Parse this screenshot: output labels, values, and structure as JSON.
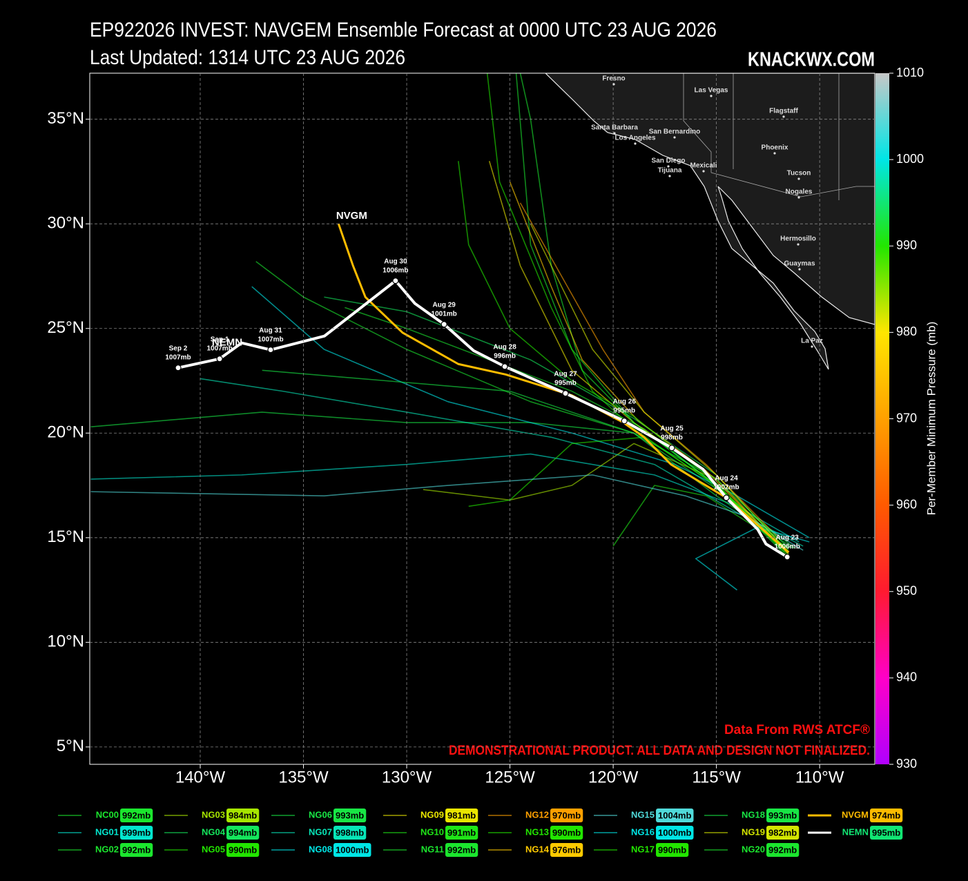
{
  "chart_data": {
    "type": "track",
    "title": "EP922026 INVEST: NAVGEM Ensemble Forecast at 0000 UTC 23 AUG 2026",
    "subtitle": "Last Updated: 1314 UTC 23 AUG 2026",
    "site": "KNACKWX.COM",
    "source": "Data From RWS ATCF®",
    "disclaimer": "DEMONSTRATIONAL PRODUCT. ALL DATA AND DESIGN NOT FINALIZED.",
    "xlim": [
      -145.35,
      -107.33
    ],
    "ylim": [
      4.17,
      37.2
    ],
    "xticks": [
      {
        "value": -140,
        "label": "140°W"
      },
      {
        "value": -135,
        "label": "135°W"
      },
      {
        "value": -130,
        "label": "130°W"
      },
      {
        "value": -125,
        "label": "125°W"
      },
      {
        "value": -120,
        "label": "120°W"
      },
      {
        "value": -115,
        "label": "115°W"
      },
      {
        "value": -110,
        "label": "110°W"
      }
    ],
    "yticks": [
      {
        "value": 5,
        "label": "5°N"
      },
      {
        "value": 10,
        "label": "10°N"
      },
      {
        "value": 15,
        "label": "15°N"
      },
      {
        "value": 20,
        "label": "20°N"
      },
      {
        "value": 25,
        "label": "25°N"
      },
      {
        "value": 30,
        "label": "30°N"
      },
      {
        "value": 35,
        "label": "35°N"
      }
    ],
    "grid": true,
    "colorbar": {
      "label": "Per-Member Minimum Pressure (mb)",
      "lim": [
        930,
        1010
      ],
      "ticks": [
        930,
        940,
        950,
        960,
        970,
        980,
        990,
        1000,
        1010
      ],
      "colormap": [
        "#b000ff",
        "#ff00c8",
        "#ff1a30",
        "#ff5a00",
        "#ffa000",
        "#ffe600",
        "#22e600",
        "#00e6e6",
        "#c8c8c8"
      ]
    },
    "places": [
      "Fresno",
      "Las Vegas",
      "Flagstaff",
      "Santa Barbara",
      "San Bernardino",
      "Los Angeles",
      "Phoenix",
      "San Diego",
      "Tijuana",
      "Mexicali",
      "Tucson",
      "Nogales",
      "Hermosillo",
      "Guaymas",
      "La Paz"
    ],
    "series": [
      {
        "name": "NC00",
        "min_pressure": 992,
        "min_pressure_label": "992mb",
        "x": [
          -111.5,
          -115,
          -118.5,
          -122,
          -126,
          -130,
          -133
        ],
        "values": [
          14.2,
          17.5,
          20.2,
          22,
          23.5,
          25,
          26
        ]
      },
      {
        "name": "NG01",
        "min_pressure": 999,
        "min_pressure_label": "999mb",
        "x": [
          -111,
          -114,
          -118,
          -124,
          -130,
          -138,
          -145.3
        ],
        "values": [
          14.8,
          16.5,
          18,
          19,
          18.5,
          18,
          17.8
        ]
      },
      {
        "name": "NG02",
        "min_pressure": 992,
        "min_pressure_label": "992mb",
        "x": [
          -111.5,
          -115,
          -119,
          -122,
          -124,
          -124.7
        ],
        "values": [
          14,
          17.5,
          20.5,
          24,
          29,
          37.2
        ]
      },
      {
        "name": "NG03",
        "min_pressure": 984,
        "min_pressure_label": "984mb",
        "x": [
          -111.8,
          -115.5,
          -119,
          -122,
          -125,
          -129.2
        ],
        "values": [
          14.5,
          18,
          19.5,
          17.5,
          16.8,
          17.3
        ]
      },
      {
        "name": "NG04",
        "min_pressure": 994,
        "min_pressure_label": "994mb",
        "x": [
          -111.5,
          -115,
          -119,
          -124,
          -130,
          -134
        ],
        "values": [
          14.3,
          18,
          20.7,
          23.5,
          25.8,
          26.5
        ]
      },
      {
        "name": "NG05",
        "min_pressure": 990,
        "min_pressure_label": "990mb",
        "x": [
          -111.8,
          -115.5,
          -119,
          -121,
          -123,
          -125.5,
          -126.1
        ],
        "values": [
          14.5,
          17.8,
          20.2,
          22,
          26,
          32,
          37.2
        ]
      },
      {
        "name": "NG06",
        "min_pressure": 993,
        "min_pressure_label": "993mb",
        "x": [
          -111.2,
          -114.5,
          -119,
          -124,
          -130,
          -137,
          -145.3
        ],
        "values": [
          14.5,
          17,
          20,
          20.5,
          20.5,
          21,
          20.3
        ]
      },
      {
        "name": "NG07",
        "min_pressure": 998,
        "min_pressure_label": "998mb",
        "x": [
          -110.8,
          -114,
          -118,
          -123,
          -130,
          -136,
          -140
        ],
        "values": [
          14.6,
          16.2,
          18.5,
          19.8,
          21,
          22,
          22.6
        ]
      },
      {
        "name": "NG08",
        "min_pressure": 1000,
        "min_pressure_label": "1000mb",
        "x": [
          -110.5,
          -114,
          -117,
          -122,
          -128,
          -134,
          -137.5
        ],
        "values": [
          15,
          17,
          18.5,
          20,
          21.5,
          24,
          27
        ]
      },
      {
        "name": "NG09",
        "min_pressure": 981,
        "min_pressure_label": "981mb",
        "x": [
          -111.5,
          -115,
          -119,
          -122,
          -124.5,
          -126
        ],
        "values": [
          14.2,
          17.8,
          20.5,
          23,
          28,
          33
        ]
      },
      {
        "name": "NG10",
        "min_pressure": 991,
        "min_pressure_label": "991mb",
        "x": [
          -111.5,
          -115.5,
          -118,
          -120
        ],
        "values": [
          14.5,
          17,
          17.5,
          14.6
        ]
      },
      {
        "name": "NG11",
        "min_pressure": 992,
        "min_pressure_label": "992mb",
        "x": [
          -111.7,
          -115,
          -119,
          -121.5,
          -123,
          -124,
          -124.5
        ],
        "values": [
          14.3,
          17.5,
          20.5,
          23,
          28,
          35,
          37.2
        ]
      },
      {
        "name": "NG12",
        "min_pressure": 970,
        "min_pressure_label": "970mb",
        "x": [
          -112,
          -115.5,
          -118.5,
          -120.5,
          -122.5,
          -124.5
        ],
        "values": [
          15,
          18.5,
          21,
          24,
          27.5,
          31
        ]
      },
      {
        "name": "NG13",
        "min_pressure": 990,
        "min_pressure_label": "990mb",
        "x": [
          -111.5,
          -115,
          -118.5,
          -122,
          -125,
          -127
        ],
        "values": [
          14.4,
          17.5,
          19.8,
          19.5,
          16.8,
          16.5
        ]
      },
      {
        "name": "NG14",
        "min_pressure": 976,
        "min_pressure_label": "976mb",
        "x": [
          -112,
          -115.5,
          -118.8,
          -121.5,
          -123,
          -125
        ],
        "values": [
          14.7,
          18.2,
          20.6,
          23.5,
          27,
          32
        ]
      },
      {
        "name": "NG15",
        "min_pressure": 1004,
        "min_pressure_label": "1004mb",
        "x": [
          -110.8,
          -113.5,
          -116.5,
          -121,
          -128,
          -134,
          -145.3
        ],
        "values": [
          14.4,
          16,
          17,
          18,
          17.5,
          17,
          17.2
        ]
      },
      {
        "name": "NG16",
        "min_pressure": 1000,
        "min_pressure_label": "1000mb",
        "x": [
          -110.5,
          -113,
          -116,
          -114
        ],
        "values": [
          14.8,
          15.5,
          14,
          12.5
        ]
      },
      {
        "name": "NG17",
        "min_pressure": 990,
        "min_pressure_label": "990mb",
        "x": [
          -111.6,
          -115,
          -119,
          -122,
          -125,
          -127,
          -127.5
        ],
        "values": [
          14.2,
          17.6,
          20.8,
          22.5,
          25,
          29,
          33
        ]
      },
      {
        "name": "NG18",
        "min_pressure": 993,
        "min_pressure_label": "993mb",
        "x": [
          -111.3,
          -115,
          -119,
          -125,
          -131,
          -137
        ],
        "values": [
          14.5,
          17,
          20,
          22,
          22.5,
          23
        ]
      },
      {
        "name": "NG19",
        "min_pressure": 982,
        "min_pressure_label": "982mb",
        "x": [
          -111.5,
          -115,
          -118.5,
          -121,
          -123,
          -124
        ],
        "values": [
          14.3,
          18,
          21,
          24,
          28,
          30
        ]
      },
      {
        "name": "NG20",
        "min_pressure": 992,
        "min_pressure_label": "992mb",
        "x": [
          -111.5,
          -115,
          -119,
          -124,
          -130,
          -135,
          -137.3
        ],
        "values": [
          14.5,
          17.8,
          20,
          21.5,
          24,
          26.5,
          28.2
        ]
      },
      {
        "name": "NVGM",
        "min_pressure": 974,
        "min_pressure_label": "974mb",
        "width": 3,
        "x": [
          -111.5,
          -114.5,
          -117.2,
          -118.5,
          -119.5,
          -122,
          -125.2,
          -127.5,
          -130.2,
          -132,
          -132.6,
          -133.3
        ],
        "values": [
          14.3,
          16.9,
          18.5,
          19.8,
          20.5,
          21.8,
          22.8,
          23.3,
          24.8,
          26.5,
          28,
          30
        ]
      },
      {
        "name": "NEMN",
        "min_pressure": 995,
        "min_pressure_label": "995mb",
        "color": "#ffffff",
        "width": 4,
        "x": [
          -111.57,
          -112.6,
          -113.0,
          -114.52,
          -115.65,
          -117.16,
          -119.46,
          -122.31,
          -125.25,
          -126.76,
          -128.19,
          -129.6,
          -130.54,
          -133.98,
          -136.59,
          -137.99,
          -139.06,
          -141.07
        ],
        "values": [
          14.08,
          14.7,
          15.4,
          16.91,
          18.27,
          19.29,
          20.58,
          21.9,
          23.18,
          23.94,
          25.2,
          26.19,
          27.28,
          24.64,
          23.98,
          24.31,
          23.55,
          23.12
        ],
        "point_dates": [
          "Aug 23",
          null,
          null,
          "Aug 24",
          null,
          "Aug 25",
          "Aug 26",
          "Aug 27",
          "Aug 28",
          null,
          "Aug 29",
          null,
          "Aug 30",
          null,
          "Aug 31",
          null,
          "Sep  1",
          "Sep  2"
        ],
        "point_labels": [
          "1006mb",
          null,
          null,
          "1002mb",
          null,
          "998mb",
          "995mb",
          "995mb",
          "996mb",
          null,
          "1001mb",
          null,
          "1006mb",
          null,
          "1007mb",
          null,
          "1007mb",
          "1007mb"
        ]
      }
    ]
  }
}
